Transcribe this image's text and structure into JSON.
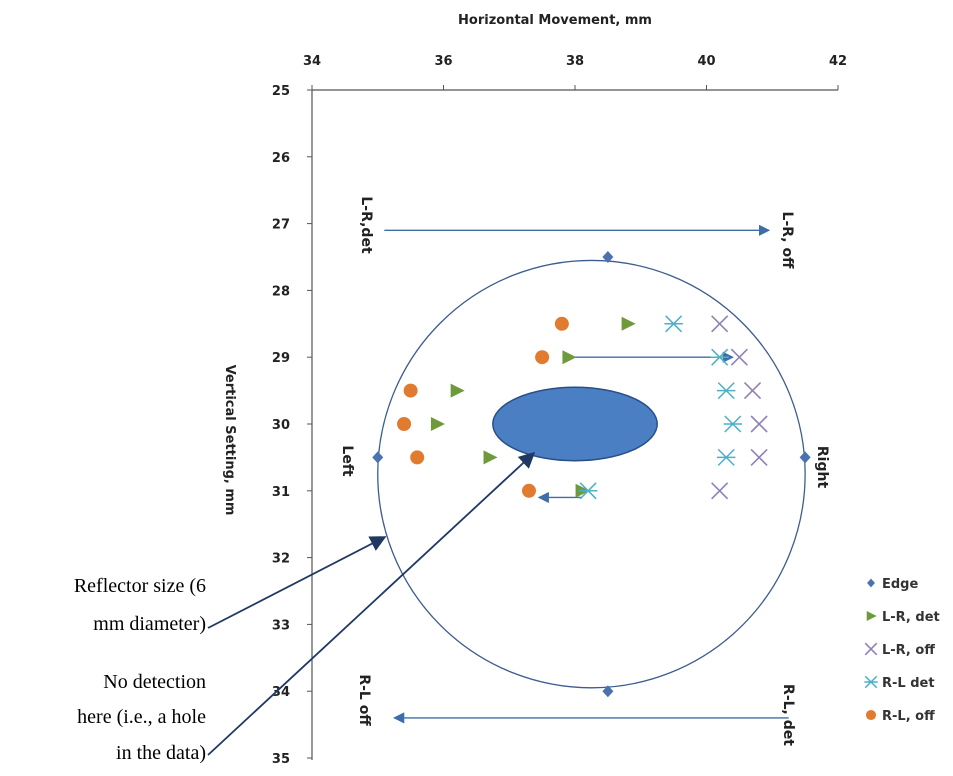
{
  "chart_data": {
    "type": "scatter",
    "xlabel": "Horizontal Movement, mm",
    "ylabel": "Vertical Setting, mm",
    "xlim": [
      34,
      42
    ],
    "ylim": [
      25,
      35
    ],
    "y_inverted": true,
    "x_axis_position": "top",
    "x_ticks": [
      "34",
      "36",
      "38",
      "40",
      "42"
    ],
    "y_ticks": [
      "25",
      "26",
      "27",
      "28",
      "29",
      "30",
      "31",
      "32",
      "33",
      "34",
      "35"
    ],
    "legend_position": "right",
    "series": [
      {
        "name": "Edge",
        "marker": "diamond",
        "color": "#4a72b0",
        "x": [
          38.5,
          35.0,
          41.5,
          38.5
        ],
        "y": [
          27.5,
          30.5,
          30.5,
          34.0
        ]
      },
      {
        "name": "L-R, det",
        "marker": "triangle",
        "color": "#6e9a3c",
        "x": [
          38.8,
          37.9,
          36.2,
          35.9,
          36.7,
          38.1
        ],
        "y": [
          28.5,
          29.0,
          29.5,
          30.0,
          30.5,
          31.0
        ]
      },
      {
        "name": "L-R, off",
        "marker": "x",
        "color": "#9080b8",
        "x": [
          40.2,
          40.5,
          40.7,
          40.8,
          40.8,
          40.2
        ],
        "y": [
          28.5,
          29.0,
          29.5,
          30.0,
          30.5,
          31.0
        ]
      },
      {
        "name": "R-L det",
        "marker": "asterisk",
        "color": "#4bb0c8",
        "x": [
          39.5,
          40.2,
          40.3,
          40.4,
          40.3,
          38.2
        ],
        "y": [
          28.5,
          29.0,
          29.5,
          30.0,
          30.5,
          31.0
        ]
      },
      {
        "name": "R-L, off",
        "marker": "circle",
        "color": "#e07b30",
        "x": [
          37.8,
          37.5,
          35.5,
          35.4,
          35.6,
          37.3
        ],
        "y": [
          28.5,
          29.0,
          29.5,
          30.0,
          30.5,
          31.0
        ]
      }
    ],
    "reflector_circle": {
      "cx": 38.25,
      "cy": 30.75,
      "r": 3.25
    },
    "hole_ellipse": {
      "cx": 38.0,
      "cy": 30.0,
      "rx": 1.25,
      "ry": 0.55,
      "color": "#4a7fc4"
    },
    "arrows": [
      {
        "x1": 35.1,
        "y1": 27.1,
        "x2": 40.95,
        "y2": 27.1
      },
      {
        "x1": 37.95,
        "y1": 29.0,
        "x2": 40.4,
        "y2": 29.0
      },
      {
        "x1": 38.1,
        "y1": 31.1,
        "x2": 37.45,
        "y2": 31.1
      },
      {
        "x1": 41.25,
        "y1": 34.4,
        "x2": 35.25,
        "y2": 34.4
      }
    ],
    "side_labels": {
      "lr_det": "L-R,det",
      "lr_off": "L-R, off",
      "rl_off": "R-L off",
      "rl_det": "R-L, det",
      "left": "Left",
      "right": "Right"
    },
    "callouts": {
      "reflector_line1": "Reflector size (6",
      "reflector_line2": "mm diameter)",
      "hole_line1": "No detection",
      "hole_line2": "here (i.e., a hole",
      "hole_line3": "in the data)"
    }
  }
}
